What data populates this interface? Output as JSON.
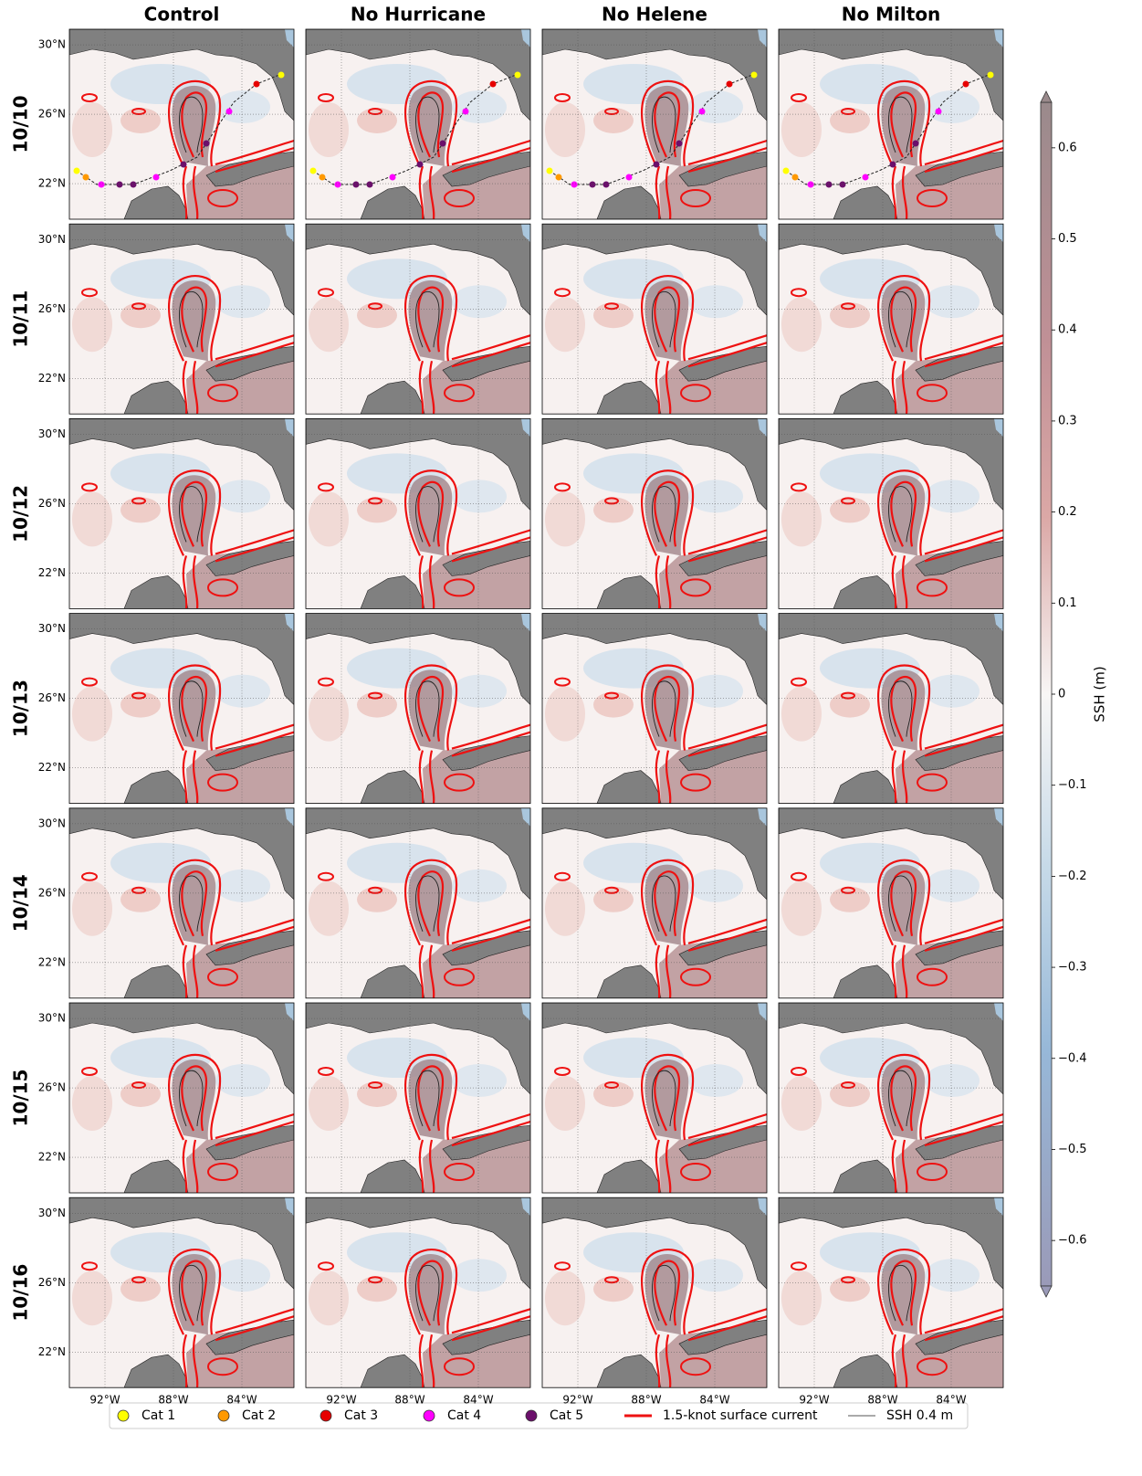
{
  "columns": [
    "Control",
    "No Hurricane",
    "No Helene",
    "No Milton"
  ],
  "rows": [
    "10/10",
    "10/11",
    "10/12",
    "10/13",
    "10/14",
    "10/15",
    "10/16"
  ],
  "latlim": [
    19.95,
    30.9
  ],
  "lonlim": [
    -94.08,
    -80.96
  ],
  "lat_ticks": [
    {
      "value": 30,
      "label": "30°N"
    },
    {
      "value": 26,
      "label": "26°N"
    },
    {
      "value": 22,
      "label": "22°N"
    }
  ],
  "lon_ticks": [
    {
      "value": -92,
      "label": "92°W"
    },
    {
      "value": -88,
      "label": "88°W"
    },
    {
      "value": -84,
      "label": "84°W"
    }
  ],
  "colorbar": {
    "label": "SSH (m)",
    "lim": [
      -0.65,
      0.65
    ],
    "ticks": [
      0.6,
      0.5,
      0.4,
      0.3,
      0.2,
      0.1,
      0.0,
      {
        "value": -0.1,
        "label": "−0.1"
      },
      {
        "value": -0.2,
        "label": "−0.2"
      },
      {
        "value": -0.3,
        "label": "−0.3"
      },
      {
        "value": -0.4,
        "label": "−0.4"
      },
      {
        "value": -0.5,
        "label": "−0.5"
      },
      {
        "value": -0.6,
        "label": "−0.6"
      }
    ]
  },
  "legend": [
    {
      "label": "Cat 1",
      "color": "#ffff00",
      "marker": "circle"
    },
    {
      "label": "Cat 2",
      "color": "#ff9900",
      "marker": "circle"
    },
    {
      "label": "Cat 3",
      "color": "#e60000",
      "marker": "circle"
    },
    {
      "label": "Cat 4",
      "color": "#ff00ff",
      "marker": "circle"
    },
    {
      "label": "Cat 5",
      "color": "#6b0f6b",
      "marker": "circle"
    },
    {
      "label": "1.5-knot surface current",
      "color": "#ee1111",
      "marker": "thick-line"
    },
    {
      "label": "SSH 0.4 m",
      "color": "#777777",
      "marker": "thin-line"
    }
  ]
}
